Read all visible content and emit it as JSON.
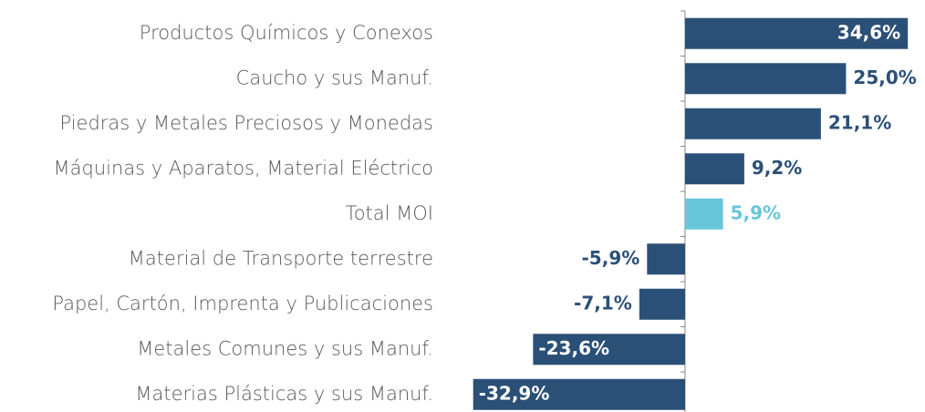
{
  "chart_data": {
    "type": "bar",
    "orientation": "horizontal",
    "categories": [
      "Productos Químicos y Conexos",
      "Caucho y sus Manuf.",
      "Piedras y Metales Preciosos y Monedas",
      "Máquinas y Aparatos, Material Eléctrico",
      "Total MOI",
      "Material de Transporte terrestre",
      "Papel, Cartón, Imprenta y Publicaciones",
      "Metales Comunes y sus Manuf.",
      "Materias Plásticas y sus Manuf."
    ],
    "values": [
      34.6,
      25.0,
      21.1,
      9.2,
      5.9,
      -5.9,
      -7.1,
      -23.6,
      -32.9
    ],
    "value_labels": [
      "34,6%",
      "25,0%",
      "21,1%",
      "9,2%",
      "5,9%",
      "-5,9%",
      "-7,1%",
      "-23,6%",
      "-32,9%"
    ],
    "colors": [
      "#2b5077",
      "#2b5077",
      "#2b5077",
      "#2b5077",
      "#67c6da",
      "#2b5077",
      "#2b5077",
      "#2b5077",
      "#2b5077"
    ],
    "xlim": [
      -33,
      35
    ]
  }
}
